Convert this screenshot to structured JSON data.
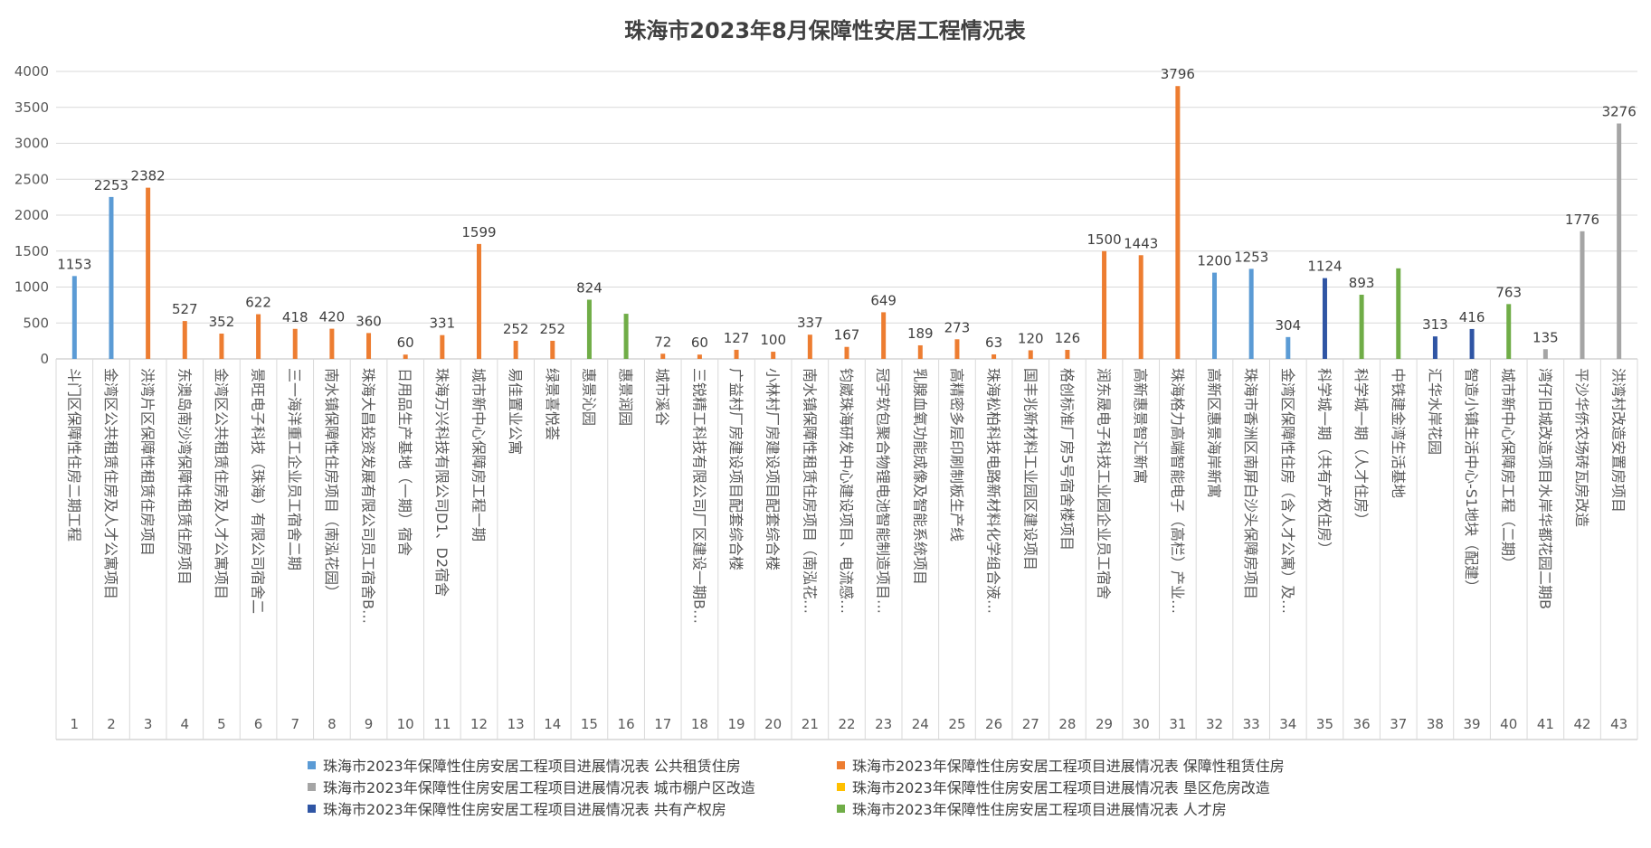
{
  "chart_data": {
    "type": "bar",
    "title": "珠海市2023年8月保障性安居工程情况表",
    "xlabel": "",
    "ylabel": "",
    "ylim": [
      0,
      4000
    ],
    "yticks": [
      0,
      500,
      1000,
      1500,
      2000,
      2500,
      3000,
      3500,
      4000
    ],
    "grid": true,
    "legend_position": "bottom",
    "colors": {
      "公共租赁住房": "#5B9BD5",
      "保障性租赁住房": "#ED7D31",
      "城市棚户区改造": "#A5A5A5",
      "垦区危房改造": "#FFC000",
      "共有产权房": "#2F55A4",
      "人才房": "#70AD47"
    },
    "legend": [
      {
        "label": "珠海市2023年保障性住房安居工程项目进展情况表 公共租赁住房",
        "color": "#5B9BD5"
      },
      {
        "label": "珠海市2023年保障性住房安居工程项目进展情况表 保障性租赁住房",
        "color": "#ED7D31"
      },
      {
        "label": "珠海市2023年保障性住房安居工程项目进展情况表 城市棚户区改造",
        "color": "#A5A5A5"
      },
      {
        "label": "珠海市2023年保障性住房安居工程项目进展情况表 垦区危房改造",
        "color": "#FFC000"
      },
      {
        "label": "珠海市2023年保障性住房安居工程项目进展情况表 共有产权房",
        "color": "#2F55A4"
      },
      {
        "label": "珠海市2023年保障性住房安居工程项目进展情况表 人才房",
        "color": "#70AD47"
      }
    ],
    "categories": [
      {
        "idx": "1",
        "name": "斗门区保障性住房二期工程",
        "value": 1153,
        "series": "公共租赁住房",
        "show_label": true
      },
      {
        "idx": "2",
        "name": "金湾区公共租赁住房及人才公寓项目",
        "value": 2253,
        "series": "公共租赁住房",
        "show_label": true
      },
      {
        "idx": "3",
        "name": "洪湾片区保障性租赁住房项目",
        "value": 2382,
        "series": "保障性租赁住房",
        "show_label": true
      },
      {
        "idx": "4",
        "name": "东澳岛南沙湾保障性租赁住房项目",
        "value": 527,
        "series": "保障性租赁住房",
        "show_label": true
      },
      {
        "idx": "5",
        "name": "金湾区公共租赁住房及人才公寓项目",
        "value": 352,
        "series": "保障性租赁住房",
        "show_label": true
      },
      {
        "idx": "6",
        "name": "景旺电子科技（珠海）有限公司宿舍二",
        "value": 622,
        "series": "保障性租赁住房",
        "show_label": true
      },
      {
        "idx": "7",
        "name": "三一海洋重工企业员工宿舍二期",
        "value": 418,
        "series": "保障性租赁住房",
        "show_label": true
      },
      {
        "idx": "8",
        "name": "南水镇保障性住房项目（南泓花园）",
        "value": 420,
        "series": "保障性租赁住房",
        "show_label": true
      },
      {
        "idx": "9",
        "name": "珠海大昌投资发展有限公司员工宿舍B…",
        "value": 360,
        "series": "保障性租赁住房",
        "show_label": true
      },
      {
        "idx": "10",
        "name": "日用品生产基地（一期）宿舍",
        "value": 60,
        "series": "保障性租赁住房",
        "show_label": true
      },
      {
        "idx": "11",
        "name": "珠海万兴科技有限公司D1、D2宿舍",
        "value": 331,
        "series": "保障性租赁住房",
        "show_label": true
      },
      {
        "idx": "12",
        "name": "城市新中心保障房工程一期",
        "value": 1599,
        "series": "保障性租赁住房",
        "show_label": true
      },
      {
        "idx": "13",
        "name": "易佳置业公寓",
        "value": 252,
        "series": "保障性租赁住房",
        "show_label": true
      },
      {
        "idx": "14",
        "name": "绿景喜悦荟",
        "value": 252,
        "series": "保障性租赁住房",
        "show_label": true
      },
      {
        "idx": "15",
        "name": "惠景沁园",
        "value": 824,
        "series": "人才房",
        "show_label": true
      },
      {
        "idx": "16",
        "name": "惠景润园",
        "value": 628,
        "series": "人才房",
        "show_label": false
      },
      {
        "idx": "17",
        "name": "城市溪谷",
        "value": 72,
        "series": "保障性租赁住房",
        "show_label": true
      },
      {
        "idx": "18",
        "name": "三锐精工科技有限公司厂区建设一期B…",
        "value": 60,
        "series": "保障性租赁住房",
        "show_label": true
      },
      {
        "idx": "19",
        "name": "广益村厂房建设项目配套综合楼",
        "value": 127,
        "series": "保障性租赁住房",
        "show_label": true
      },
      {
        "idx": "20",
        "name": "小林村厂房建设项目配套综合楼",
        "value": 100,
        "series": "保障性租赁住房",
        "show_label": true
      },
      {
        "idx": "21",
        "name": "南水镇保障性租赁住房项目（南泓花…",
        "value": 337,
        "series": "保障性租赁住房",
        "show_label": true
      },
      {
        "idx": "22",
        "name": "钧崴珠海研发中心建设项目、电流感…",
        "value": 167,
        "series": "保障性租赁住房",
        "show_label": true
      },
      {
        "idx": "23",
        "name": "冠宇软包聚合物锂电池智能制造项目…",
        "value": 649,
        "series": "保障性租赁住房",
        "show_label": true
      },
      {
        "idx": "24",
        "name": "乳腺血氧功能成像及智能系统项目",
        "value": 189,
        "series": "保障性租赁住房",
        "show_label": true
      },
      {
        "idx": "25",
        "name": "高精密多层印刷制板生产线",
        "value": 273,
        "series": "保障性租赁住房",
        "show_label": true
      },
      {
        "idx": "26",
        "name": "珠海松柏科技电路新材料化学组合液…",
        "value": 63,
        "series": "保障性租赁住房",
        "show_label": true
      },
      {
        "idx": "27",
        "name": "国丰兆新材料工业园区建设项目",
        "value": 120,
        "series": "保障性租赁住房",
        "show_label": true
      },
      {
        "idx": "28",
        "name": "格创标准厂房5号宿舍楼项目",
        "value": 126,
        "series": "保障性租赁住房",
        "show_label": true
      },
      {
        "idx": "29",
        "name": "润东晟电子科技工业园企业员工宿舍",
        "value": 1500,
        "series": "保障性租赁住房",
        "show_label": true
      },
      {
        "idx": "30",
        "name": "高新惠景智汇新寓",
        "value": 1443,
        "series": "保障性租赁住房",
        "show_label": true
      },
      {
        "idx": "31",
        "name": "珠海格力高端智能电子（高栏）产业…",
        "value": 3796,
        "series": "保障性租赁住房",
        "show_label": true
      },
      {
        "idx": "32",
        "name": "高新区惠景海岸新寓",
        "value": 1200,
        "series": "公共租赁住房",
        "show_label": true
      },
      {
        "idx": "33",
        "name": "珠海市香洲区南屏白沙头保障房项目",
        "value": 1253,
        "series": "公共租赁住房",
        "show_label": true
      },
      {
        "idx": "34",
        "name": "金湾区保障性住房（含人才公寓）及…",
        "value": 304,
        "series": "公共租赁住房",
        "show_label": true
      },
      {
        "idx": "35",
        "name": "科学城一期（共有产权住房）",
        "value": 1124,
        "series": "共有产权房",
        "show_label": true
      },
      {
        "idx": "36",
        "name": "科学城一期（人才住房）",
        "value": 893,
        "series": "人才房",
        "show_label": true
      },
      {
        "idx": "37",
        "name": "中铁建金湾生活基地",
        "value": 1260,
        "series": "人才房",
        "show_label": false
      },
      {
        "idx": "38",
        "name": "汇华水岸花园",
        "value": 313,
        "series": "共有产权房",
        "show_label": true
      },
      {
        "idx": "39",
        "name": "智造小镇生活中心-S1地块（配建）",
        "value": 416,
        "series": "共有产权房",
        "show_label": true
      },
      {
        "idx": "40",
        "name": "城市新中心保障房工程（二期）",
        "value": 763,
        "series": "人才房",
        "show_label": true
      },
      {
        "idx": "41",
        "name": "湾仔旧城改造项目水岸华都花园二期B",
        "value": 135,
        "series": "城市棚户区改造",
        "show_label": true
      },
      {
        "idx": "42",
        "name": "平沙华侨农场砖瓦房改造",
        "value": 1776,
        "series": "城市棚户区改造",
        "show_label": true
      },
      {
        "idx": "43",
        "name": "洪湾村改造安置房项目",
        "value": 3276,
        "series": "城市棚户区改造",
        "show_label": true
      }
    ]
  }
}
